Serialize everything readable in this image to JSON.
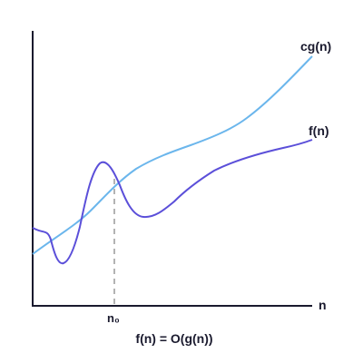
{
  "figure": {
    "curve_g_label": "cg(n)",
    "curve_f_label": "f(n)",
    "x_axis_label": "n",
    "threshold_label": "n₀",
    "caption": "f(n) = O(g(n))"
  },
  "colors": {
    "background": "#ffffff",
    "axis": "#1a1a2e",
    "curve_g": "#6bb6ec",
    "curve_f": "#5b4fd9",
    "threshold_line": "#9a9a9a",
    "text": "#1a1a2e"
  }
}
